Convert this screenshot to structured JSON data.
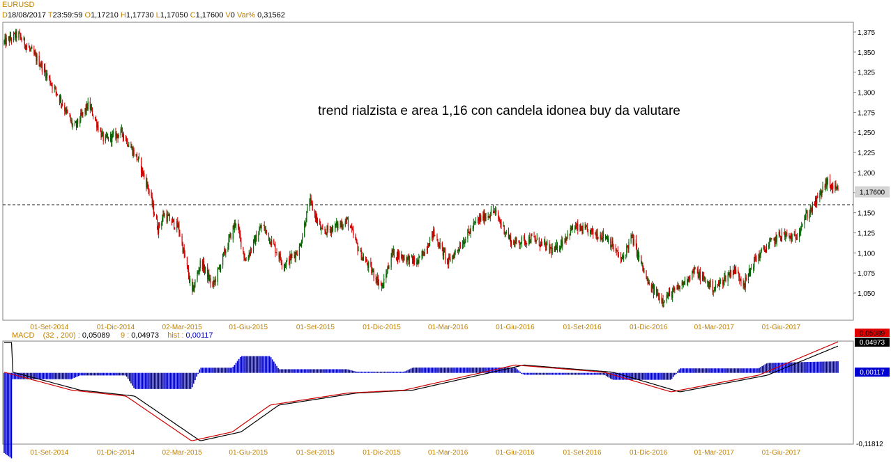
{
  "header": {
    "symbol": "EURUSD",
    "fields": [
      {
        "k": "D",
        "v": "18/08/2017"
      },
      {
        "k": "T",
        "v": "23:59:59"
      },
      {
        "k": "O",
        "v": "1,17210"
      },
      {
        "k": "H",
        "v": "1,17730"
      },
      {
        "k": "L",
        "v": "1,17050"
      },
      {
        "k": "C",
        "v": "1,17600"
      },
      {
        "k": "V",
        "v": "0"
      },
      {
        "k": "Var%",
        "v": "0,31562"
      }
    ]
  },
  "price_axis": {
    "labels": [
      "1,375",
      "1,350",
      "1,325",
      "1,300",
      "1,275",
      "1,250",
      "1,225",
      "1,200",
      "1,175",
      "1,150",
      "1,125",
      "1,100",
      "1,075",
      "1,050"
    ],
    "last_value": "1,17600"
  },
  "time_axis": {
    "labels": [
      "01-Set-2014",
      "01-Dic-2014",
      "02-Mar-2015",
      "01-Giu-2015",
      "01-Set-2015",
      "01-Dic-2015",
      "01-Mar-2016",
      "01-Giu-2016",
      "01-Set-2016",
      "01-Dic-2016",
      "01-Mar-2017",
      "01-Giu-2017"
    ]
  },
  "annotation": "trend rialzista e area 1,16 con candela idonea buy da valutare",
  "macd": {
    "title": "MACD",
    "params": "(32 , 200) :",
    "macd_value": "0,05089",
    "signal_label": "9 :",
    "signal_value": "0,04973",
    "hist_label": "hist :",
    "hist_value": "0,00117",
    "axis_min_label": "-0,11812"
  },
  "colors": {
    "up": "#006400",
    "down": "#d00000",
    "macd_line": "#d00000",
    "signal_line": "#000000",
    "histogram": "#0000c0",
    "label": "#c08000"
  },
  "chart_data": [
    {
      "type": "candlestick",
      "title": "EURUSD",
      "x_range": [
        "2014-07-01",
        "2017-08-18"
      ],
      "ylim": [
        1.03,
        1.385
      ],
      "horizontal_line": 1.16,
      "keypoints": [
        {
          "date": "2014-07-01",
          "close": 1.362
        },
        {
          "date": "2014-07-20",
          "close": 1.372
        },
        {
          "date": "2014-08-20",
          "close": 1.335
        },
        {
          "date": "2014-09-15",
          "close": 1.293
        },
        {
          "date": "2014-10-05",
          "close": 1.255
        },
        {
          "date": "2014-10-25",
          "close": 1.285
        },
        {
          "date": "2014-11-15",
          "close": 1.24
        },
        {
          "date": "2014-12-10",
          "close": 1.25
        },
        {
          "date": "2015-01-01",
          "close": 1.215
        },
        {
          "date": "2015-01-15",
          "close": 1.18
        },
        {
          "date": "2015-01-28",
          "close": 1.13
        },
        {
          "date": "2015-02-05",
          "close": 1.148
        },
        {
          "date": "2015-02-25",
          "close": 1.132
        },
        {
          "date": "2015-03-16",
          "close": 1.05
        },
        {
          "date": "2015-03-28",
          "close": 1.09
        },
        {
          "date": "2015-04-13",
          "close": 1.058
        },
        {
          "date": "2015-05-15",
          "close": 1.14
        },
        {
          "date": "2015-05-28",
          "close": 1.09
        },
        {
          "date": "2015-06-20",
          "close": 1.135
        },
        {
          "date": "2015-07-20",
          "close": 1.085
        },
        {
          "date": "2015-08-10",
          "close": 1.105
        },
        {
          "date": "2015-08-24",
          "close": 1.165
        },
        {
          "date": "2015-09-10",
          "close": 1.125
        },
        {
          "date": "2015-10-15",
          "close": 1.14
        },
        {
          "date": "2015-11-01",
          "close": 1.1
        },
        {
          "date": "2015-12-02",
          "close": 1.057
        },
        {
          "date": "2015-12-15",
          "close": 1.1
        },
        {
          "date": "2016-01-20",
          "close": 1.088
        },
        {
          "date": "2016-02-10",
          "close": 1.125
        },
        {
          "date": "2016-03-01",
          "close": 1.088
        },
        {
          "date": "2016-04-10",
          "close": 1.14
        },
        {
          "date": "2016-05-03",
          "close": 1.152
        },
        {
          "date": "2016-05-28",
          "close": 1.112
        },
        {
          "date": "2016-06-24",
          "close": 1.118
        },
        {
          "date": "2016-07-25",
          "close": 1.102
        },
        {
          "date": "2016-08-20",
          "close": 1.132
        },
        {
          "date": "2016-10-05",
          "close": 1.12
        },
        {
          "date": "2016-10-25",
          "close": 1.09
        },
        {
          "date": "2016-11-08",
          "close": 1.12
        },
        {
          "date": "2016-12-01",
          "close": 1.06
        },
        {
          "date": "2016-12-20",
          "close": 1.042
        },
        {
          "date": "2017-01-10",
          "close": 1.055
        },
        {
          "date": "2017-02-02",
          "close": 1.078
        },
        {
          "date": "2017-03-01",
          "close": 1.055
        },
        {
          "date": "2017-03-28",
          "close": 1.08
        },
        {
          "date": "2017-04-12",
          "close": 1.062
        },
        {
          "date": "2017-04-25",
          "close": 1.09
        },
        {
          "date": "2017-05-15",
          "close": 1.11
        },
        {
          "date": "2017-06-01",
          "close": 1.123
        },
        {
          "date": "2017-06-20",
          "close": 1.118
        },
        {
          "date": "2017-07-01",
          "close": 1.14
        },
        {
          "date": "2017-07-20",
          "close": 1.165
        },
        {
          "date": "2017-08-02",
          "close": 1.188
        },
        {
          "date": "2017-08-18",
          "close": 1.176
        }
      ]
    },
    {
      "type": "line",
      "title": "MACD",
      "series": [
        {
          "name": "MACD",
          "keypoints": [
            {
              "date": "2014-07-01",
              "value": 0.0
            },
            {
              "date": "2014-10-01",
              "value": -0.03
            },
            {
              "date": "2014-12-15",
              "value": -0.04
            },
            {
              "date": "2015-03-15",
              "value": -0.115
            },
            {
              "date": "2015-05-10",
              "value": -0.1
            },
            {
              "date": "2015-07-01",
              "value": -0.055
            },
            {
              "date": "2015-10-15",
              "value": -0.035
            },
            {
              "date": "2016-01-01",
              "value": -0.03
            },
            {
              "date": "2016-06-01",
              "value": 0.012
            },
            {
              "date": "2016-10-01",
              "value": 0.0
            },
            {
              "date": "2017-01-01",
              "value": -0.033
            },
            {
              "date": "2017-05-01",
              "value": -0.005
            },
            {
              "date": "2017-08-18",
              "value": 0.05089
            }
          ]
        },
        {
          "name": "9",
          "keypoints": [
            {
              "date": "2014-07-01",
              "value": 0.0
            },
            {
              "date": "2014-10-01",
              "value": -0.03
            },
            {
              "date": "2014-12-15",
              "value": -0.04
            },
            {
              "date": "2015-03-15",
              "value": -0.115
            },
            {
              "date": "2015-05-10",
              "value": -0.1
            },
            {
              "date": "2015-07-01",
              "value": -0.055
            },
            {
              "date": "2015-10-15",
              "value": -0.035
            },
            {
              "date": "2016-01-01",
              "value": -0.03
            },
            {
              "date": "2016-06-01",
              "value": 0.012
            },
            {
              "date": "2016-10-01",
              "value": 0.0
            },
            {
              "date": "2017-01-01",
              "value": -0.033
            },
            {
              "date": "2017-05-01",
              "value": -0.005
            },
            {
              "date": "2017-08-18",
              "value": 0.04973
            }
          ]
        }
      ],
      "ylim": [
        -0.11812,
        0.05089
      ]
    }
  ]
}
